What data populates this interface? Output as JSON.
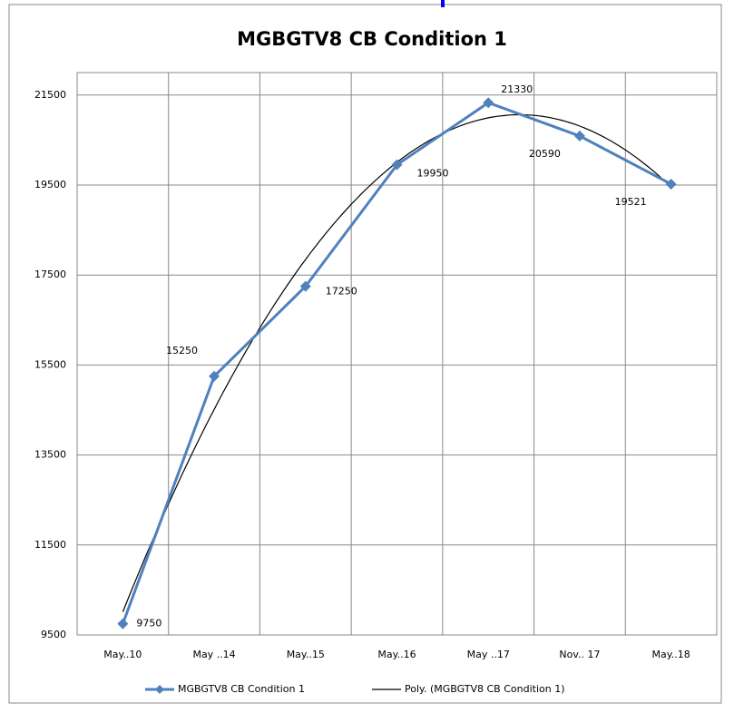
{
  "chart_data": {
    "type": "line",
    "title": "MGBGTV8 CB Condition 1",
    "categories": [
      "May..10",
      "May ..14",
      "May..15",
      "May..16",
      "May ..17",
      "Nov.. 17",
      "May..18"
    ],
    "series": [
      {
        "name": "MGBGTV8 CB Condition 1",
        "color": "#4f81bd",
        "values": [
          9750,
          15250,
          17250,
          19950,
          21330,
          20590,
          19521
        ]
      }
    ],
    "trendline": {
      "name": "Poly. (MGBGTV8 CB Condition 1)",
      "kind": "polynomial",
      "order": 2,
      "color": "#000000"
    },
    "ylim": [
      9500,
      22000
    ],
    "yticks": [
      9500,
      11500,
      13500,
      15500,
      17500,
      19500,
      21500
    ],
    "grid": true,
    "legend": "bottom"
  }
}
